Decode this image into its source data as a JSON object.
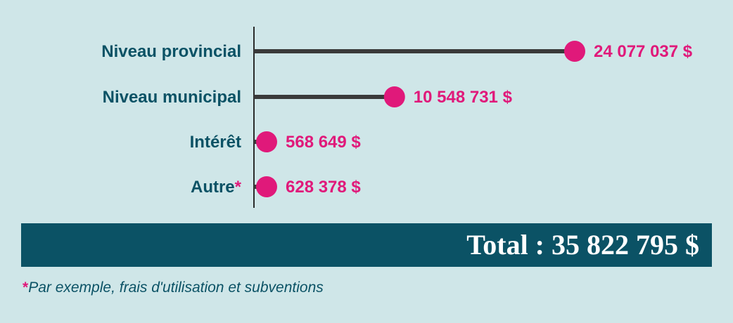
{
  "colors": {
    "background": "#cfe6e8",
    "label_teal": "#0b5265",
    "value_pink": "#e0197a",
    "stem_gray": "#3a3a3a",
    "total_band": "#0b5265",
    "total_text": "#ffffff"
  },
  "chart_data": {
    "type": "lollipop",
    "orientation": "horizontal",
    "categories": [
      "Niveau provincial",
      "Niveau municipal",
      "Intérêt",
      "Autre"
    ],
    "category_suffixes": [
      "",
      "",
      "",
      "*"
    ],
    "values": [
      24077037,
      10548731,
      568649,
      628378
    ],
    "value_labels": [
      "24 077 037 $",
      "10 548 731 $",
      "568 649 $",
      "628 378 $"
    ],
    "xlim": [
      0,
      24077037
    ],
    "grid": false,
    "legend": "none"
  },
  "total": {
    "text": "Total : 35 822 795 $"
  },
  "footnote": {
    "marker": "*",
    "text": "Par exemple, frais d'utilisation et subventions"
  }
}
